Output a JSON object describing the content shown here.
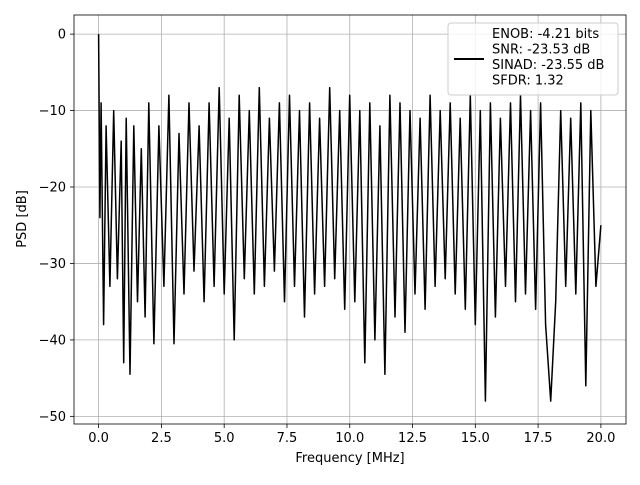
{
  "chart_data": {
    "type": "line",
    "title": "",
    "xlabel": "Frequency [MHz]",
    "ylabel": "PSD [dB]",
    "xlim": [
      -0.98,
      21.0
    ],
    "ylim": [
      -51.0,
      2.5
    ],
    "xticks": [
      0.0,
      2.5,
      5.0,
      7.5,
      10.0,
      12.5,
      15.0,
      17.5,
      20.0
    ],
    "xtick_labels": [
      "0.0",
      "2.5",
      "5.0",
      "7.5",
      "10.0",
      "12.5",
      "15.0",
      "17.5",
      "20.0"
    ],
    "yticks": [
      0,
      -10,
      -20,
      -30,
      -40,
      -50
    ],
    "ytick_labels": [
      "0",
      "−10",
      "−20",
      "−30",
      "−40",
      "−50"
    ],
    "grid": true,
    "legend_position": "top-right",
    "series": [
      {
        "name": "ENOB: -4.21 bits\nSNR: -23.53 dB\nSINAD: -23.55 dB\nSFDR: 1.32",
        "color": "#000000",
        "x": [
          0.0,
          0.05,
          0.1,
          0.2,
          0.3,
          0.45,
          0.6,
          0.75,
          0.9,
          1.0,
          1.1,
          1.25,
          1.4,
          1.55,
          1.7,
          1.85,
          2.0,
          2.2,
          2.4,
          2.6,
          2.8,
          3.0,
          3.2,
          3.4,
          3.6,
          3.8,
          4.0,
          4.2,
          4.4,
          4.6,
          4.8,
          5.0,
          5.2,
          5.4,
          5.6,
          5.8,
          6.0,
          6.2,
          6.4,
          6.6,
          6.8,
          7.0,
          7.2,
          7.4,
          7.6,
          7.8,
          8.0,
          8.2,
          8.4,
          8.6,
          8.8,
          9.0,
          9.2,
          9.4,
          9.6,
          9.8,
          10.0,
          10.2,
          10.4,
          10.6,
          10.8,
          11.0,
          11.2,
          11.4,
          11.6,
          11.8,
          12.0,
          12.2,
          12.4,
          12.6,
          12.8,
          13.0,
          13.2,
          13.4,
          13.6,
          13.8,
          14.0,
          14.2,
          14.4,
          14.6,
          14.8,
          15.0,
          15.2,
          15.4,
          15.6,
          15.8,
          16.0,
          16.2,
          16.4,
          16.6,
          16.8,
          17.0,
          17.2,
          17.4,
          17.6,
          17.8,
          18.0,
          18.2,
          18.4,
          18.6,
          18.8,
          19.0,
          19.2,
          19.4,
          19.6,
          19.8,
          20.0
        ],
        "y": [
          0.0,
          -24.0,
          -9.0,
          -38.0,
          -12.0,
          -33.0,
          -10.0,
          -32.0,
          -14.0,
          -43.0,
          -11.0,
          -44.5,
          -12.0,
          -35.0,
          -15.0,
          -37.0,
          -9.0,
          -40.5,
          -12.0,
          -33.0,
          -8.0,
          -40.5,
          -13.0,
          -34.0,
          -9.0,
          -31.0,
          -12.0,
          -35.0,
          -9.0,
          -33.0,
          -7.0,
          -34.0,
          -11.0,
          -40.0,
          -8.0,
          -32.0,
          -10.0,
          -34.0,
          -7.0,
          -33.0,
          -11.0,
          -31.0,
          -9.0,
          -35.0,
          -8.0,
          -33.0,
          -10.0,
          -37.0,
          -9.0,
          -34.0,
          -11.0,
          -33.0,
          -7.0,
          -32.0,
          -10.0,
          -36.0,
          -8.0,
          -35.0,
          -10.0,
          -43.0,
          -9.0,
          -40.0,
          -12.0,
          -44.5,
          -8.0,
          -37.0,
          -9.0,
          -39.0,
          -10.0,
          -34.0,
          -11.0,
          -36.0,
          -8.0,
          -33.0,
          -10.0,
          -32.0,
          -9.0,
          -34.0,
          -11.0,
          -36.0,
          -8.0,
          -38.0,
          -10.0,
          -48.0,
          -9.0,
          -37.0,
          -11.0,
          -33.0,
          -9.0,
          -35.0,
          -8.0,
          -34.0,
          -10.0,
          -36.0,
          -9.0,
          -38.0,
          -48.0,
          -35.0,
          -10.0,
          -33.0,
          -11.0,
          -34.0,
          -9.0,
          -46.0,
          -10.0,
          -33.0,
          -25.0
        ]
      }
    ]
  }
}
